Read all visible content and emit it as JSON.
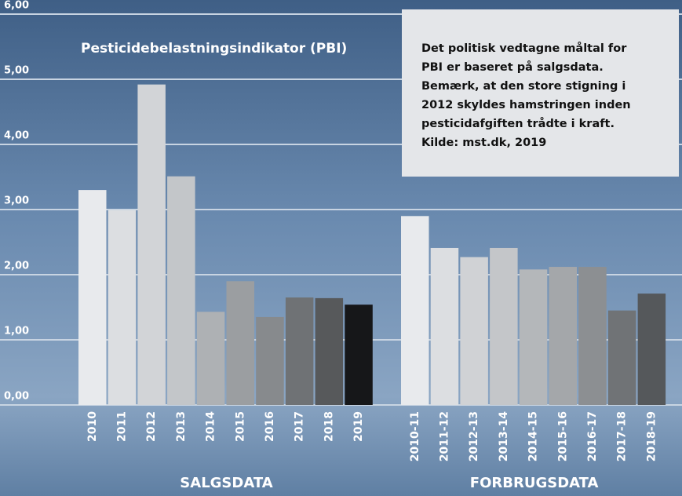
{
  "chart_data": {
    "type": "bar",
    "title": "Pesticidebelastningsindikator (PBI)",
    "annotation": [
      "Det politisk vedtagne måltal for",
      "PBI er baseret på salgsdata.",
      "Bemærk, at den store stigning i",
      "2012 skyldes hamstringen inden",
      "pesticidafgiften trådte i kraft.",
      "Kilde: mst.dk, 2019"
    ],
    "ylim": [
      0,
      6
    ],
    "yticks": [
      {
        "value": 0,
        "label": "0,00"
      },
      {
        "value": 1,
        "label": "1,00"
      },
      {
        "value": 2,
        "label": "2,00"
      },
      {
        "value": 3,
        "label": "3,00"
      },
      {
        "value": 4,
        "label": "4,00"
      },
      {
        "value": 5,
        "label": "5,00"
      },
      {
        "value": 6,
        "label": "6,00"
      }
    ],
    "grid": true,
    "groups": [
      {
        "name": "SALGSDATA",
        "categories": [
          "2010",
          "2011",
          "2012",
          "2013",
          "2014",
          "2015",
          "2016",
          "2017",
          "2018",
          "2019"
        ],
        "values": [
          3.3,
          2.99,
          4.92,
          3.51,
          1.43,
          1.9,
          1.35,
          1.65,
          1.64,
          1.54
        ],
        "colors": [
          "#e8eaed",
          "#dcdee1",
          "#d2d4d7",
          "#c3c6c9",
          "#aeb1b4",
          "#9b9ea1",
          "#878a8d",
          "#6f7275",
          "#57595b",
          "#161719"
        ]
      },
      {
        "name": "FORBRUGSDATA",
        "categories": [
          "2010-11",
          "2011-12",
          "2012-13",
          "2013-14",
          "2014-15",
          "2015-16",
          "2016-17",
          "2017-18",
          "2018-19"
        ],
        "values": [
          2.9,
          2.41,
          2.27,
          2.41,
          2.08,
          2.12,
          2.12,
          1.45,
          1.71
        ],
        "colors": [
          "#e8eaed",
          "#dcdee1",
          "#d0d2d5",
          "#c4c6c9",
          "#b4b7ba",
          "#a4a7aa",
          "#8c8f92",
          "#707376",
          "#55585b"
        ]
      }
    ]
  }
}
